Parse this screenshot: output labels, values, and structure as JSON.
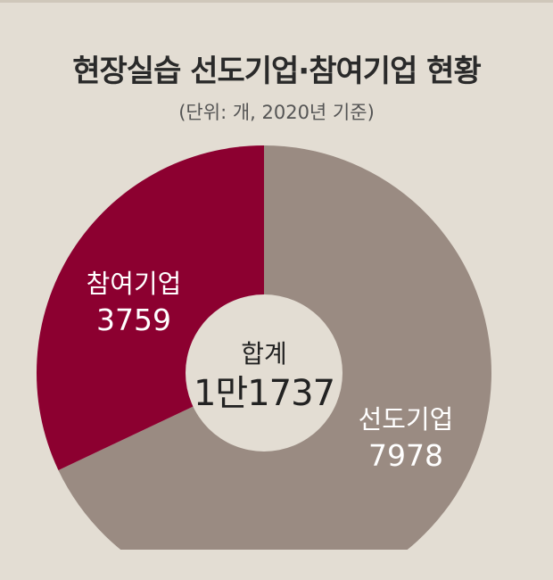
{
  "title": "현장실습 선도기업·참여기업 현황",
  "subtitle": "(단위: 개, 2020년 기준)",
  "colors": {
    "background": "#e3ddd3",
    "leading": "#9a8b82",
    "participating": "#8c0030",
    "center": "#e3ddd3",
    "label_on_maroon": "#ffffff",
    "label_on_taupe": "#ffffff",
    "center_text": "#222222"
  },
  "chart_data": {
    "type": "pie",
    "variant": "donut",
    "title": "현장실습 선도기업·참여기업 현황",
    "subtitle": "(단위: 개, 2020년 기준)",
    "unit": "개",
    "total": {
      "label": "합계",
      "value": 11737,
      "display": "1만1737"
    },
    "slices": [
      {
        "name": "선도기업",
        "value": 7978,
        "display": "7978",
        "color": "#9a8b82"
      },
      {
        "name": "참여기업",
        "value": 3759,
        "display": "3759",
        "color": "#8c0030"
      }
    ],
    "start": "top",
    "direction": "clockwise",
    "legend": "none"
  }
}
